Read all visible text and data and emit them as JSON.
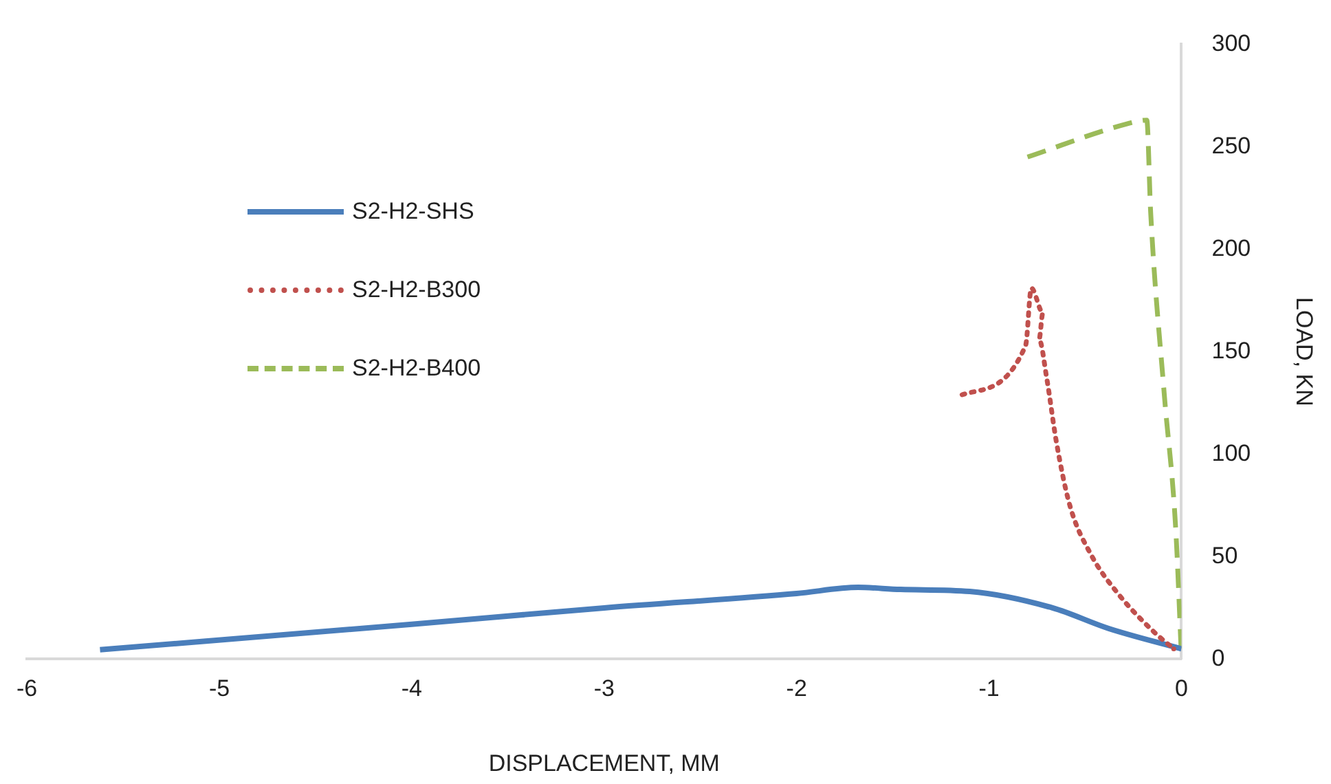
{
  "chart_data": {
    "type": "line",
    "xlabel": "DISPLACEMENT, MM",
    "ylabel": "LOAD, KN",
    "xlim": [
      -6,
      0
    ],
    "xticks": [
      -6,
      -5,
      -4,
      -3,
      -2,
      -1,
      0
    ],
    "ylim": [
      0,
      300
    ],
    "yticks": [
      0,
      50,
      100,
      150,
      200,
      250,
      300
    ],
    "grid": false,
    "legend": "left",
    "marker": "none",
    "series": [
      {
        "name": "S2-H2-SHS",
        "color": "#4a7ebb",
        "line_style": "solid",
        "x": [
          -5.62,
          -4,
          -3,
          -2,
          -1.68,
          -1.46,
          -1.1,
          -0.67,
          -0.38,
          0
        ],
        "values": [
          4.6,
          17,
          25,
          32,
          35,
          34,
          33,
          25,
          15,
          5
        ]
      },
      {
        "name": "S2-H2-B300",
        "color": "#c0504d",
        "line_style": "dotted",
        "x": [
          -1.14,
          -0.81,
          -0.78,
          -0.72,
          -0.74,
          -0.7,
          -0.65,
          -0.58,
          -0.47,
          -0.33,
          -0.14,
          -0.04
        ],
        "values": [
          129,
          153,
          181,
          169,
          156,
          137,
          106,
          75,
          51,
          32,
          13,
          5
        ]
      },
      {
        "name": "S2-H2-B400",
        "color": "#9bbb59",
        "line_style": "dashed",
        "x": [
          -0.8,
          -0.29,
          -0.18,
          -0.16,
          -0.09,
          -0.03,
          0
        ],
        "values": [
          245,
          261,
          263,
          218,
          130,
          64,
          1
        ]
      }
    ]
  }
}
